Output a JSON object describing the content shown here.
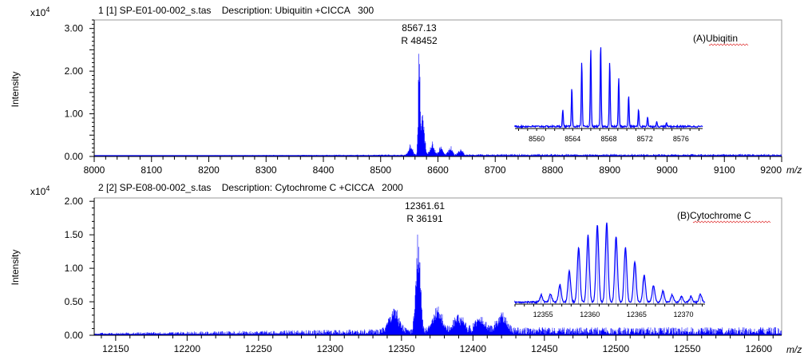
{
  "chart_data": [
    {
      "type": "line",
      "title": "1 [1] SP-E01-00-002_s.tas    Description: Ubiquitin +CICCA   300",
      "ylabel": "Intensity",
      "yscale_label": "x10",
      "yscale_exp": "4",
      "xlabel": "m/z",
      "xlim": [
        8000,
        9200
      ],
      "ylim": [
        0,
        3.2
      ],
      "xticks": [
        "8000",
        "8100",
        "8200",
        "8300",
        "8400",
        "8500",
        "8600",
        "8700",
        "8800",
        "8900",
        "9000",
        "9100",
        "9200"
      ],
      "yticks": [
        "0.00",
        "1.00",
        "2.00",
        "3.00"
      ],
      "color": "#0000ff",
      "peak_annotation": {
        "mz": "8567.13",
        "resolution": "R 48452",
        "x": 8567.13,
        "y": 2.5
      },
      "label": "(A)Ubiqitin",
      "features": [
        [
          8552,
          0.25
        ],
        [
          8567.13,
          2.5
        ],
        [
          8573,
          1.0
        ],
        [
          8590,
          0.33
        ],
        [
          8605,
          0.22
        ],
        [
          8622,
          0.2
        ],
        [
          8640,
          0.15
        ]
      ],
      "baseline_noise": 0.06,
      "inset": {
        "xlim": [
          8557.6,
          8578.4
        ],
        "xticks": [
          "8560",
          "8564",
          "8568",
          "8572",
          "8576"
        ],
        "peaks_x": [
          8562.9,
          8563.9,
          8565.0,
          8566.0,
          8567.1,
          8568.1,
          8569.1,
          8570.2,
          8571.3,
          8572.3,
          8573.3,
          8574.4
        ],
        "peaks_rel": [
          0.2,
          0.48,
          0.79,
          0.94,
          1.0,
          0.79,
          0.59,
          0.38,
          0.21,
          0.12,
          0.06,
          0.04
        ]
      }
    },
    {
      "type": "line",
      "title": "2 [2] SP-E08-00-002_s.tas    Description: Cytochrome C +CICCA   2000",
      "ylabel": "Intensity",
      "yscale_label": "x10",
      "yscale_exp": "4",
      "xlabel": "m/z",
      "xlim": [
        12135,
        12616
      ],
      "ylim": [
        0,
        2.05
      ],
      "xticks": [
        "12150",
        "12200",
        "12250",
        "12300",
        "12350",
        "12400",
        "12450",
        "12500",
        "12550",
        "12600"
      ],
      "yticks": [
        "0.00",
        "0.50",
        "1.00",
        "1.50",
        "2.00"
      ],
      "color": "#0000ff",
      "peak_annotation": {
        "mz": "12361.61",
        "resolution": "R 36191",
        "x": 12361.61,
        "y": 1.6
      },
      "label": "(B)Cytochrome C",
      "features": [
        [
          12345,
          0.35
        ],
        [
          12361.61,
          1.6
        ],
        [
          12375,
          0.37
        ],
        [
          12390,
          0.27
        ],
        [
          12405,
          0.22
        ],
        [
          12420,
          0.25
        ]
      ],
      "baseline_noise": 0.12,
      "inset": {
        "xlim": [
          12352.0,
          12372.3
        ],
        "xticks": [
          "12355",
          "12360",
          "12365",
          "12370"
        ],
        "peaks_x": [
          12354.8,
          12355.8,
          12356.8,
          12357.8,
          12358.8,
          12359.8,
          12360.8,
          12361.8,
          12362.8,
          12363.8,
          12364.8,
          12365.8,
          12366.8,
          12367.8,
          12368.8,
          12369.8,
          12370.8,
          12371.8
        ],
        "peaks_rel": [
          0.09,
          0.1,
          0.22,
          0.39,
          0.69,
          0.84,
          0.97,
          1.0,
          0.83,
          0.69,
          0.51,
          0.34,
          0.21,
          0.14,
          0.09,
          0.07,
          0.07,
          0.1
        ]
      }
    }
  ]
}
